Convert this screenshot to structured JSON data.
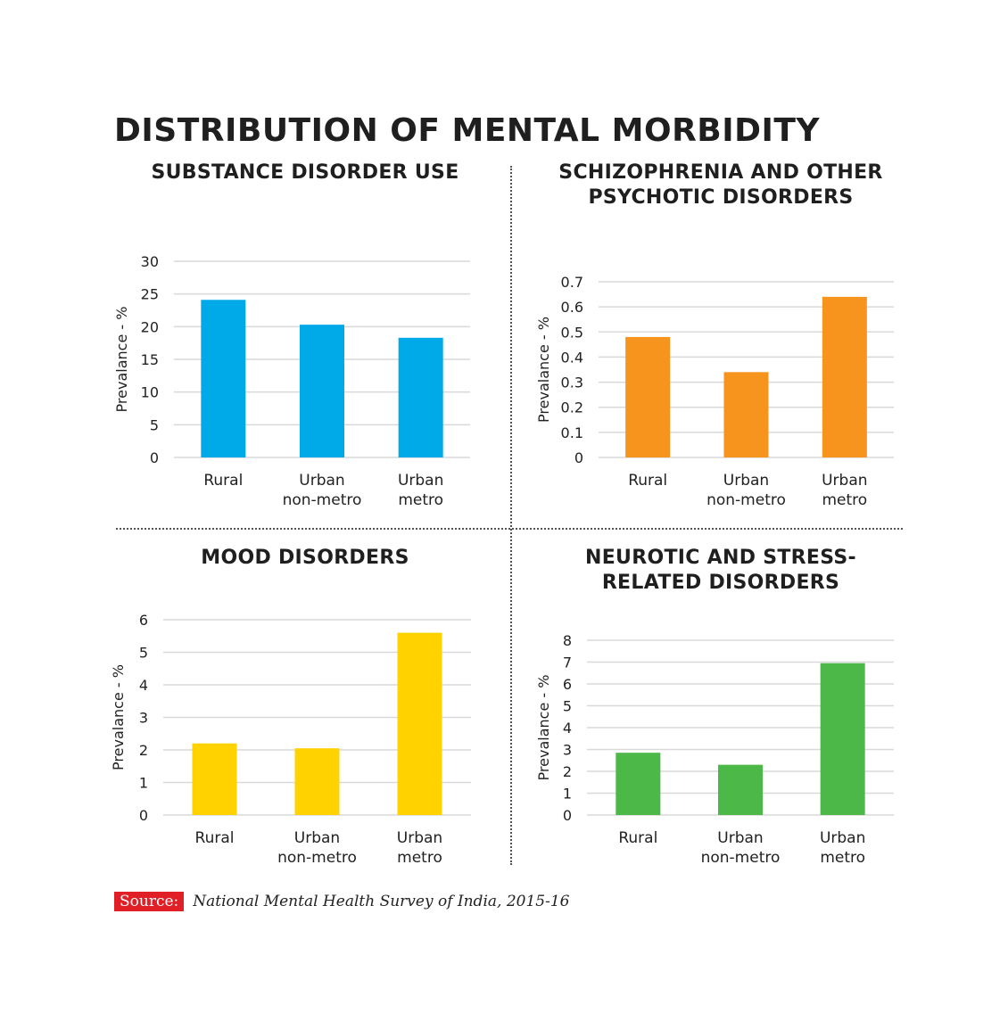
{
  "title": "DISTRIBUTION OF MENTAL MORBIDITY",
  "source": {
    "label": "Source:",
    "text": "National Mental Health Survey of India, 2015-16",
    "label_color": "#e01f26"
  },
  "chart_data": [
    {
      "type": "bar",
      "title_lines": [
        "SUBSTANCE DISORDER USE"
      ],
      "ylabel": "Prevalance - %",
      "categories": [
        [
          "Rural"
        ],
        [
          "Urban",
          "non-metro"
        ],
        [
          "Urban",
          "metro"
        ]
      ],
      "values": [
        24.1,
        20.3,
        18.3
      ],
      "ylim": [
        0,
        30
      ],
      "yticks": [
        "0",
        "5",
        "10",
        "15",
        "20",
        "25",
        "30"
      ],
      "color": "#00a9e8",
      "grid": true
    },
    {
      "type": "bar",
      "title_lines": [
        "SCHIZOPHRENIA AND OTHER",
        "PSYCHOTIC DISORDERS"
      ],
      "ylabel": "Prevalance - %",
      "categories": [
        [
          "Rural"
        ],
        [
          "Urban",
          "non-metro"
        ],
        [
          "Urban",
          "metro"
        ]
      ],
      "values": [
        0.48,
        0.34,
        0.64
      ],
      "ylim": [
        0,
        0.7
      ],
      "yticks": [
        "0",
        "0.1",
        "0.2",
        "0.3",
        "0.4",
        "0.5",
        "0.6",
        "0.7"
      ],
      "color": "#f7941d",
      "grid": true
    },
    {
      "type": "bar",
      "title_lines": [
        "MOOD DISORDERS"
      ],
      "ylabel": "Prevalance - %",
      "categories": [
        [
          "Rural"
        ],
        [
          "Urban",
          "non-metro"
        ],
        [
          "Urban",
          "metro"
        ]
      ],
      "values": [
        2.2,
        2.05,
        5.6
      ],
      "ylim": [
        0,
        6
      ],
      "yticks": [
        "0",
        "1",
        "2",
        "3",
        "4",
        "5",
        "6"
      ],
      "color": "#ffd200",
      "grid": true
    },
    {
      "type": "bar",
      "title_lines": [
        "NEUROTIC AND STRESS-",
        "RELATED DISORDERS"
      ],
      "ylabel": "Prevalance - %",
      "categories": [
        [
          "Rural"
        ],
        [
          "Urban",
          "non-metro"
        ],
        [
          "Urban",
          "metro"
        ]
      ],
      "values": [
        2.85,
        2.3,
        6.95
      ],
      "ylim": [
        0,
        8
      ],
      "yticks": [
        "0",
        "1",
        "2",
        "3",
        "4",
        "5",
        "6",
        "7",
        "8"
      ],
      "color": "#4cb848",
      "grid": true
    }
  ]
}
